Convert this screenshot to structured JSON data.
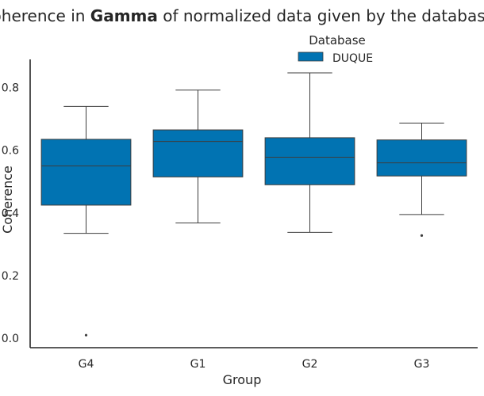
{
  "chart_data": {
    "type": "boxplot",
    "title": {
      "before": "Coherence in ",
      "emphasis": "Gamma",
      "after": " of normalized data given by the databases"
    },
    "xlabel": "Group",
    "ylabel": "Coherence",
    "ylim": [
      -0.03,
      0.89
    ],
    "yticks": [
      0.0,
      0.2,
      0.4,
      0.6,
      0.8
    ],
    "ytick_labels": [
      "0.0",
      "0.2",
      "0.4",
      "0.6",
      "0.8"
    ],
    "grid": false,
    "legend": {
      "title": "Database",
      "placement": "top-center",
      "entries": [
        {
          "label": "DUQUE",
          "color": "#0173b2"
        }
      ]
    },
    "categories": [
      "G4",
      "G1",
      "G2",
      "G3"
    ],
    "series": [
      {
        "name": "DUQUE",
        "color": "#0173b2",
        "boxes": [
          {
            "category": "G4",
            "whisker_low": 0.335,
            "q1": 0.425,
            "median": 0.55,
            "q3": 0.635,
            "whisker_high": 0.74,
            "outliers": [
              0.01
            ]
          },
          {
            "category": "G1",
            "whisker_low": 0.368,
            "q1": 0.515,
            "median": 0.628,
            "q3": 0.665,
            "whisker_high": 0.792,
            "outliers": []
          },
          {
            "category": "G2",
            "whisker_low": 0.338,
            "q1": 0.49,
            "median": 0.578,
            "q3": 0.64,
            "whisker_high": 0.847,
            "outliers": []
          },
          {
            "category": "G3",
            "whisker_low": 0.395,
            "q1": 0.518,
            "median": 0.56,
            "q3": 0.633,
            "whisker_high": 0.687,
            "outliers": [
              0.328
            ]
          }
        ]
      }
    ]
  }
}
